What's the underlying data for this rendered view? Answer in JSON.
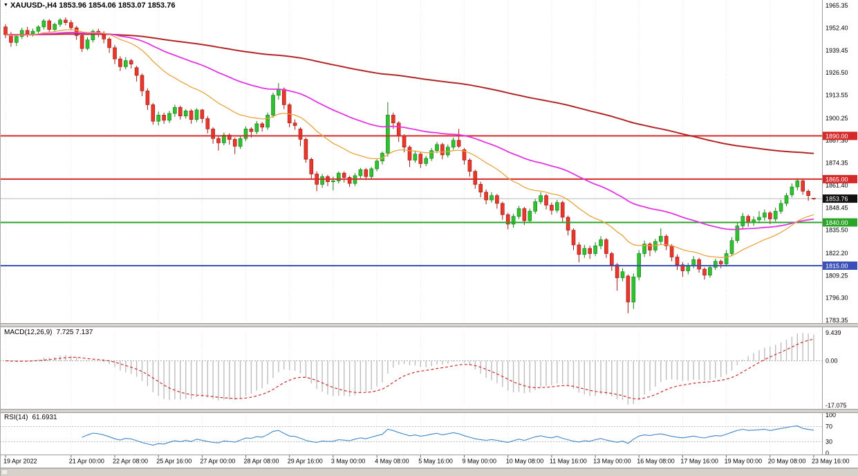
{
  "window": {
    "header": {
      "marker": "▼",
      "title": "XAUUSD-,H4 1853.96 1854.06 1853.07 1853.76"
    }
  },
  "colors": {
    "up_candle": "#2fc12f",
    "up_border": "#117a11",
    "down_candle": "#e8372b",
    "down_border": "#9c1510",
    "ma_fast": "#e8a33d",
    "ma_mid": "#e232e2",
    "ma_slow": "#b22525",
    "hline_red": "#d42a2a",
    "hline_green": "#2aa52a",
    "hline_blue": "#3a50b8",
    "macd_hist": "#bdbdbd",
    "macd_signal": "#cc2a2a",
    "rsi_line": "#3d85c8",
    "current_badge": "#111111",
    "panel_sep": "#d6d2cb"
  },
  "chart_data": {
    "type": "candlestick",
    "symbol": "XAUUSD-",
    "timeframe": "H4",
    "current_ohlc": {
      "open": "1853.96",
      "high": "1854.06",
      "low": "1853.07",
      "close": "1853.76"
    },
    "price_axis": {
      "top": 1968.55,
      "bottom": 1782.2,
      "labels": [
        "1965.35",
        "1952.40",
        "1939.45",
        "1926.50",
        "1913.55",
        "1900.25",
        "1887.30",
        "1874.35",
        "1861.40",
        "1848.45",
        "1835.50",
        "1822.20",
        "1809.25",
        "1796.30",
        "1783.35"
      ]
    },
    "hlines": [
      {
        "price": 1890.0,
        "text": "1890.00",
        "color": "#d42a2a",
        "width": 2
      },
      {
        "price": 1865.0,
        "text": "1865.00",
        "color": "#d42a2a",
        "width": 2
      },
      {
        "price": 1840.0,
        "text": "1840.00",
        "color": "#2aa52a",
        "width": 2
      },
      {
        "price": 1815.0,
        "text": "1815.00",
        "color": "#3a50b8",
        "width": 2
      }
    ],
    "current_price": {
      "price": 1853.76,
      "text": "1853.76"
    },
    "moving_averages": [
      {
        "name": "ma-fast",
        "period": 21,
        "color": "#e8a33d",
        "width": 1.3
      },
      {
        "name": "ma-mid",
        "period": 55,
        "color": "#e232e2",
        "width": 1.8
      },
      {
        "name": "ma-slow",
        "period": 200,
        "color": "#b22525",
        "width": 2
      }
    ],
    "x_labels": [
      {
        "label": "19 Apr 2022",
        "index": 0
      },
      {
        "label": "21 Apr 00:00",
        "index": 12
      },
      {
        "label": "22 Apr 08:00",
        "index": 20
      },
      {
        "label": "25 Apr 16:00",
        "index": 28
      },
      {
        "label": "27 Apr 00:00",
        "index": 36
      },
      {
        "label": "28 Apr 08:00",
        "index": 44
      },
      {
        "label": "29 Apr 16:00",
        "index": 52
      },
      {
        "label": "3 May 00:00",
        "index": 60
      },
      {
        "label": "4 May 08:00",
        "index": 68
      },
      {
        "label": "5 May 16:00",
        "index": 76
      },
      {
        "label": "9 May 00:00",
        "index": 84
      },
      {
        "label": "10 May 08:00",
        "index": 92
      },
      {
        "label": "11 May 16:00",
        "index": 100
      },
      {
        "label": "13 May 00:00",
        "index": 108
      },
      {
        "label": "16 May 08:00",
        "index": 116
      },
      {
        "label": "17 May 16:00",
        "index": 124
      },
      {
        "label": "19 May 00:00",
        "index": 132
      },
      {
        "label": "20 May 08:00",
        "index": 140
      },
      {
        "label": "23 May 16:00",
        "index": 148
      }
    ],
    "candles": [
      [
        1953.0,
        1954.5,
        1946.5,
        1948.5
      ],
      [
        1948.5,
        1950.0,
        1941.5,
        1944.0
      ],
      [
        1944.0,
        1948.5,
        1942.0,
        1947.5
      ],
      [
        1947.5,
        1952.5,
        1946.0,
        1951.0
      ],
      [
        1951.0,
        1953.0,
        1947.0,
        1949.0
      ],
      [
        1949.0,
        1952.0,
        1947.5,
        1950.5
      ],
      [
        1950.5,
        1954.0,
        1949.0,
        1953.0
      ],
      [
        1953.0,
        1957.5,
        1951.5,
        1956.5
      ],
      [
        1956.5,
        1957.5,
        1949.5,
        1951.5
      ],
      [
        1951.5,
        1955.5,
        1950.0,
        1954.5
      ],
      [
        1954.5,
        1958.0,
        1953.0,
        1957.0
      ],
      [
        1957.0,
        1958.5,
        1954.0,
        1955.5
      ],
      [
        1955.5,
        1957.0,
        1951.0,
        1952.5
      ],
      [
        1952.5,
        1953.5,
        1945.5,
        1948.0
      ],
      [
        1948.0,
        1949.0,
        1938.5,
        1940.5
      ],
      [
        1940.5,
        1947.0,
        1939.5,
        1945.5
      ],
      [
        1945.5,
        1951.5,
        1944.0,
        1950.5
      ],
      [
        1950.5,
        1952.0,
        1947.0,
        1949.0
      ],
      [
        1949.0,
        1950.5,
        1943.5,
        1946.0
      ],
      [
        1946.0,
        1947.0,
        1938.0,
        1941.0
      ],
      [
        1941.0,
        1942.5,
        1931.5,
        1934.5
      ],
      [
        1934.5,
        1936.0,
        1927.5,
        1930.0
      ],
      [
        1930.0,
        1935.5,
        1928.5,
        1933.5
      ],
      [
        1933.5,
        1934.5,
        1929.0,
        1931.5
      ],
      [
        1929.5,
        1930.5,
        1921.5,
        1925.0
      ],
      [
        1925.0,
        1926.0,
        1913.0,
        1916.0
      ],
      [
        1916.0,
        1917.5,
        1905.0,
        1908.0
      ],
      [
        1908.0,
        1909.0,
        1896.5,
        1898.5
      ],
      [
        1898.5,
        1904.0,
        1896.0,
        1902.0
      ],
      [
        1902.0,
        1903.5,
        1897.0,
        1899.0
      ],
      [
        1899.0,
        1904.5,
        1897.5,
        1903.0
      ],
      [
        1903.0,
        1908.0,
        1901.0,
        1906.5
      ],
      [
        1906.5,
        1907.5,
        1899.5,
        1901.5
      ],
      [
        1901.5,
        1905.5,
        1900.0,
        1904.5
      ],
      [
        1904.5,
        1905.5,
        1897.0,
        1899.5
      ],
      [
        1899.5,
        1906.0,
        1898.0,
        1905.0
      ],
      [
        1905.0,
        1905.5,
        1897.5,
        1900.0
      ],
      [
        1900.0,
        1901.5,
        1891.5,
        1894.0
      ],
      [
        1894.0,
        1895.0,
        1885.5,
        1888.5
      ],
      [
        1888.5,
        1890.0,
        1881.5,
        1886.0
      ],
      [
        1886.0,
        1892.0,
        1884.5,
        1890.5
      ],
      [
        1890.5,
        1891.5,
        1885.0,
        1888.0
      ],
      [
        1888.0,
        1889.0,
        1879.5,
        1884.0
      ],
      [
        1884.0,
        1890.0,
        1882.5,
        1888.5
      ],
      [
        1888.5,
        1895.5,
        1887.0,
        1894.0
      ],
      [
        1894.0,
        1895.0,
        1889.0,
        1892.5
      ],
      [
        1892.5,
        1898.5,
        1891.0,
        1897.0
      ],
      [
        1897.0,
        1898.0,
        1892.5,
        1895.0
      ],
      [
        1895.0,
        1903.5,
        1893.5,
        1902.0
      ],
      [
        1902.0,
        1915.0,
        1900.5,
        1913.5
      ],
      [
        1913.5,
        1920.5,
        1911.0,
        1917.0
      ],
      [
        1917.0,
        1918.0,
        1905.5,
        1908.0
      ],
      [
        1908.0,
        1909.0,
        1895.0,
        1897.5
      ],
      [
        1897.5,
        1899.5,
        1893.5,
        1896.0
      ],
      [
        1894.0,
        1895.0,
        1884.0,
        1888.0
      ],
      [
        1888.0,
        1889.0,
        1874.5,
        1876.5
      ],
      [
        1876.5,
        1877.5,
        1865.0,
        1868.0
      ],
      [
        1868.0,
        1869.5,
        1858.0,
        1862.0
      ],
      [
        1862.0,
        1868.0,
        1860.0,
        1866.5
      ],
      [
        1866.5,
        1867.5,
        1861.0,
        1863.5
      ],
      [
        1863.5,
        1866.5,
        1858.5,
        1864.0
      ],
      [
        1864.0,
        1869.5,
        1862.5,
        1868.5
      ],
      [
        1868.5,
        1869.5,
        1863.0,
        1866.0
      ],
      [
        1866.0,
        1867.0,
        1860.5,
        1862.5
      ],
      [
        1862.5,
        1868.5,
        1861.0,
        1867.0
      ],
      [
        1867.0,
        1871.5,
        1865.5,
        1870.5
      ],
      [
        1870.5,
        1871.5,
        1864.5,
        1866.5
      ],
      [
        1866.5,
        1872.0,
        1865.0,
        1871.0
      ],
      [
        1871.0,
        1876.5,
        1869.5,
        1875.5
      ],
      [
        1875.5,
        1881.0,
        1873.5,
        1880.0
      ],
      [
        1880.0,
        1909.5,
        1878.0,
        1902.0
      ],
      [
        1902.0,
        1903.5,
        1894.0,
        1897.5
      ],
      [
        1897.5,
        1898.5,
        1886.5,
        1890.0
      ],
      [
        1890.0,
        1891.0,
        1880.5,
        1883.5
      ],
      [
        1883.5,
        1884.5,
        1872.0,
        1876.0
      ],
      [
        1876.0,
        1881.5,
        1874.5,
        1879.5
      ],
      [
        1879.5,
        1880.5,
        1871.5,
        1874.0
      ],
      [
        1874.0,
        1878.5,
        1872.5,
        1877.0
      ],
      [
        1877.0,
        1883.0,
        1875.5,
        1881.5
      ],
      [
        1881.5,
        1886.5,
        1880.0,
        1885.0
      ],
      [
        1885.0,
        1886.0,
        1876.5,
        1879.0
      ],
      [
        1879.0,
        1885.0,
        1877.5,
        1883.5
      ],
      [
        1883.5,
        1889.0,
        1882.0,
        1887.5
      ],
      [
        1887.5,
        1894.0,
        1883.0,
        1884.0
      ],
      [
        1882.0,
        1883.0,
        1873.5,
        1876.0
      ],
      [
        1876.0,
        1877.0,
        1866.5,
        1869.5
      ],
      [
        1869.5,
        1870.5,
        1859.5,
        1862.0
      ],
      [
        1862.0,
        1863.5,
        1854.5,
        1857.5
      ],
      [
        1857.5,
        1859.0,
        1850.5,
        1853.0
      ],
      [
        1853.0,
        1857.5,
        1851.5,
        1855.5
      ],
      [
        1855.5,
        1856.5,
        1848.0,
        1851.0
      ],
      [
        1851.0,
        1852.0,
        1841.5,
        1844.5
      ],
      [
        1844.5,
        1845.5,
        1836.0,
        1839.0
      ],
      [
        1839.0,
        1845.0,
        1837.0,
        1843.5
      ],
      [
        1843.5,
        1849.5,
        1842.0,
        1848.0
      ],
      [
        1848.0,
        1849.0,
        1838.5,
        1841.0
      ],
      [
        1841.0,
        1848.0,
        1839.5,
        1846.5
      ],
      [
        1846.5,
        1853.5,
        1845.0,
        1852.0
      ],
      [
        1852.0,
        1857.5,
        1850.5,
        1855.5
      ],
      [
        1855.5,
        1856.5,
        1847.5,
        1850.0
      ],
      [
        1850.0,
        1851.5,
        1844.5,
        1847.0
      ],
      [
        1847.0,
        1853.0,
        1845.5,
        1851.5
      ],
      [
        1851.5,
        1852.5,
        1840.0,
        1843.0
      ],
      [
        1843.0,
        1844.0,
        1832.5,
        1835.5
      ],
      [
        1835.5,
        1836.5,
        1824.0,
        1827.0
      ],
      [
        1827.0,
        1828.5,
        1817.0,
        1821.5
      ],
      [
        1821.5,
        1827.0,
        1819.5,
        1825.0
      ],
      [
        1825.0,
        1826.5,
        1819.0,
        1822.0
      ],
      [
        1822.0,
        1828.5,
        1820.5,
        1826.5
      ],
      [
        1826.5,
        1832.0,
        1824.5,
        1830.0
      ],
      [
        1830.0,
        1831.0,
        1819.5,
        1822.0
      ],
      [
        1822.0,
        1823.0,
        1812.0,
        1815.5
      ],
      [
        1815.5,
        1816.5,
        1800.5,
        1808.0
      ],
      [
        1808.0,
        1813.5,
        1806.0,
        1811.5
      ],
      [
        1809.0,
        1810.0,
        1787.5,
        1794.0
      ],
      [
        1794.0,
        1810.5,
        1790.0,
        1808.5
      ],
      [
        1808.5,
        1824.0,
        1806.5,
        1822.0
      ],
      [
        1822.0,
        1829.5,
        1820.0,
        1827.5
      ],
      [
        1827.5,
        1828.5,
        1820.5,
        1824.0
      ],
      [
        1824.0,
        1830.5,
        1822.5,
        1829.0
      ],
      [
        1829.0,
        1836.5,
        1827.5,
        1832.0
      ],
      [
        1832.0,
        1833.0,
        1824.0,
        1826.5
      ],
      [
        1826.5,
        1827.5,
        1817.5,
        1820.0
      ],
      [
        1820.0,
        1821.5,
        1812.5,
        1815.5
      ],
      [
        1815.5,
        1817.0,
        1808.5,
        1812.0
      ],
      [
        1812.0,
        1816.5,
        1810.0,
        1815.0
      ],
      [
        1815.0,
        1820.5,
        1813.5,
        1818.5
      ],
      [
        1818.5,
        1819.5,
        1811.0,
        1813.0
      ],
      [
        1813.0,
        1814.0,
        1807.0,
        1809.5
      ],
      [
        1809.5,
        1815.5,
        1808.0,
        1814.0
      ],
      [
        1814.0,
        1819.0,
        1812.5,
        1817.5
      ],
      [
        1817.5,
        1818.5,
        1813.5,
        1816.0
      ],
      [
        1816.0,
        1824.0,
        1814.5,
        1822.0
      ],
      [
        1822.0,
        1831.5,
        1820.5,
        1829.5
      ],
      [
        1829.5,
        1840.0,
        1828.0,
        1838.0
      ],
      [
        1838.0,
        1845.5,
        1836.5,
        1843.5
      ],
      [
        1843.5,
        1844.5,
        1837.5,
        1840.0
      ],
      [
        1840.0,
        1843.5,
        1838.0,
        1841.5
      ],
      [
        1841.5,
        1846.5,
        1839.5,
        1843.0
      ],
      [
        1843.0,
        1847.5,
        1841.0,
        1845.5
      ],
      [
        1845.5,
        1846.5,
        1839.0,
        1842.0
      ],
      [
        1842.0,
        1848.5,
        1840.5,
        1846.5
      ],
      [
        1846.5,
        1853.0,
        1845.0,
        1851.0
      ],
      [
        1851.0,
        1857.0,
        1849.5,
        1855.5
      ],
      [
        1856.0,
        1862.5,
        1854.5,
        1860.5
      ],
      [
        1860.5,
        1865.5,
        1858.5,
        1864.0
      ],
      [
        1864.0,
        1865.0,
        1856.0,
        1858.0
      ],
      [
        1858.0,
        1859.0,
        1852.5,
        1855.5
      ],
      [
        1853.96,
        1854.06,
        1853.07,
        1853.76
      ]
    ],
    "macd": {
      "label": "MACD(12,26,9)",
      "values_text": "7.725 7.137",
      "fast_period": 12,
      "slow_period": 26,
      "signal_period": 9,
      "axis_labels": [
        "9.439",
        "0.00",
        "-17.075"
      ]
    },
    "rsi": {
      "label": "RSI(14)",
      "value_text": "61.6931",
      "period": 14,
      "levels": [
        70,
        30
      ],
      "axis_labels": [
        "100",
        "70",
        "30",
        "0"
      ]
    }
  }
}
